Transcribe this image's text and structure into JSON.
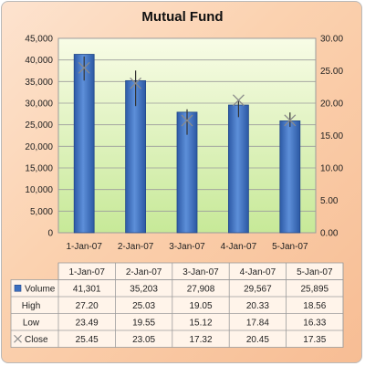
{
  "chart_data": {
    "type": "stock-volume-high-low-close",
    "title": "Mutual Fund",
    "categories": [
      "1-Jan-07",
      "2-Jan-07",
      "3-Jan-07",
      "4-Jan-07",
      "5-Jan-07"
    ],
    "series": [
      {
        "name": "Volume",
        "values": [
          41301,
          35203,
          27908,
          29567,
          25895
        ],
        "axis": "primary",
        "type": "bar",
        "color": "#3b6fbf"
      },
      {
        "name": "High",
        "values": [
          27.2,
          25.03,
          19.05,
          20.33,
          18.56
        ],
        "axis": "secondary"
      },
      {
        "name": "Low",
        "values": [
          23.49,
          19.55,
          15.12,
          17.84,
          16.33
        ],
        "axis": "secondary"
      },
      {
        "name": "Close",
        "values": [
          25.45,
          23.05,
          17.32,
          20.45,
          17.35
        ],
        "axis": "secondary",
        "marker": "x"
      }
    ],
    "table_values": [
      [
        "41,301",
        "35,203",
        "27,908",
        "29,567",
        "25,895"
      ],
      [
        "27.20",
        "25.03",
        "19.05",
        "20.33",
        "18.56"
      ],
      [
        "23.49",
        "19.55",
        "15.12",
        "17.84",
        "16.33"
      ],
      [
        "25.45",
        "23.05",
        "17.32",
        "20.45",
        "17.35"
      ]
    ],
    "y_primary": {
      "range": [
        0,
        45000
      ],
      "ticks": [
        "0",
        "5,000",
        "10,000",
        "15,000",
        "20,000",
        "25,000",
        "30,000",
        "35,000",
        "40,000",
        "45,000"
      ]
    },
    "y_secondary": {
      "range": [
        0,
        30
      ],
      "ticks": [
        "0.00",
        "5.00",
        "10.00",
        "15.00",
        "20.00",
        "25.00",
        "30.00"
      ]
    },
    "grid": true,
    "legend": "data-table"
  },
  "colors": {
    "bar": "#3b6fbf",
    "bar_light": "#6f9be0",
    "plot_bg_top": "#f6fbe0",
    "plot_bg_bottom": "#c9ea9a"
  }
}
